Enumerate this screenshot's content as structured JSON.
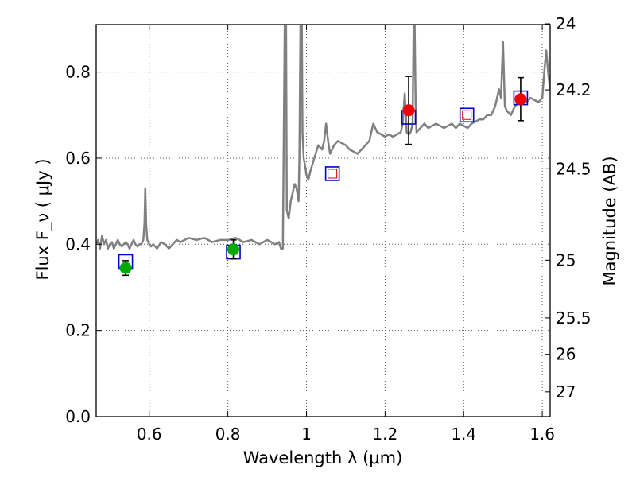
{
  "chart_data": {
    "type": "scatter",
    "xlabel": "Wavelength  λ (μm)",
    "ylabel": "Flux  F_ν  ( μJy )",
    "ylabel_right": "Magnitude (AB)",
    "xlim": [
      0.465,
      1.62
    ],
    "ylim": [
      0.0,
      0.91
    ],
    "grid": true,
    "x_ticks": [
      {
        "value": 0.6,
        "label": "0.6"
      },
      {
        "value": 0.8,
        "label": "0.8"
      },
      {
        "value": 1.0,
        "label": "1"
      },
      {
        "value": 1.2,
        "label": "1.2"
      },
      {
        "value": 1.4,
        "label": "1.4"
      },
      {
        "value": 1.6,
        "label": "1.6"
      }
    ],
    "y_ticks": [
      {
        "value": 0.0,
        "label": "0.0"
      },
      {
        "value": 0.2,
        "label": "0.2"
      },
      {
        "value": 0.4,
        "label": "0.4"
      },
      {
        "value": 0.6,
        "label": "0.6"
      },
      {
        "value": 0.8,
        "label": "0.8"
      }
    ],
    "right_ticks": [
      {
        "mag": 24,
        "label": "24"
      },
      {
        "mag": 24.2,
        "label": "24.2"
      },
      {
        "mag": 24.5,
        "label": "24.5"
      },
      {
        "mag": 25,
        "label": "25"
      },
      {
        "mag": 25.5,
        "label": "25.5"
      },
      {
        "mag": 26,
        "label": "26"
      },
      {
        "mag": 27,
        "label": "27"
      }
    ],
    "colors": {
      "spectrum": "#808080",
      "model_box": "#0000cc",
      "model_box_inner": "#dd0000",
      "green_point": "#00aa00",
      "red_point": "#ee0000",
      "errorbar": "#000000",
      "grid": "#555555"
    },
    "spectrum": {
      "name": "model spectrum",
      "x": [
        0.465,
        0.47,
        0.475,
        0.48,
        0.485,
        0.49,
        0.495,
        0.5,
        0.505,
        0.51,
        0.515,
        0.52,
        0.525,
        0.53,
        0.535,
        0.54,
        0.545,
        0.55,
        0.555,
        0.56,
        0.565,
        0.57,
        0.575,
        0.58,
        0.585,
        0.588,
        0.59,
        0.592,
        0.595,
        0.6,
        0.605,
        0.61,
        0.62,
        0.63,
        0.64,
        0.65,
        0.66,
        0.67,
        0.68,
        0.69,
        0.7,
        0.72,
        0.74,
        0.76,
        0.78,
        0.8,
        0.82,
        0.84,
        0.86,
        0.88,
        0.9,
        0.92,
        0.93,
        0.935,
        0.94,
        0.945,
        0.948,
        0.95,
        0.952,
        0.955,
        0.96,
        0.965,
        0.97,
        0.975,
        0.98,
        0.982,
        0.985,
        0.988,
        0.99,
        0.993,
        0.997,
        1.0,
        1.005,
        1.01,
        1.02,
        1.03,
        1.04,
        1.045,
        1.05,
        1.055,
        1.06,
        1.07,
        1.08,
        1.09,
        1.1,
        1.11,
        1.12,
        1.13,
        1.14,
        1.15,
        1.16,
        1.17,
        1.18,
        1.19,
        1.2,
        1.21,
        1.22,
        1.23,
        1.24,
        1.245,
        1.25,
        1.255,
        1.26,
        1.265,
        1.27,
        1.273,
        1.275,
        1.278,
        1.28,
        1.285,
        1.29,
        1.3,
        1.31,
        1.32,
        1.33,
        1.34,
        1.35,
        1.36,
        1.37,
        1.38,
        1.39,
        1.4,
        1.41,
        1.42,
        1.43,
        1.44,
        1.45,
        1.46,
        1.47,
        1.48,
        1.49,
        1.495,
        1.5,
        1.505,
        1.51,
        1.52,
        1.53,
        1.54,
        1.55,
        1.56,
        1.57,
        1.58,
        1.59,
        1.6,
        1.605,
        1.61,
        1.615,
        1.62
      ],
      "y": [
        0.4,
        0.41,
        0.39,
        0.42,
        0.4,
        0.41,
        0.39,
        0.4,
        0.405,
        0.39,
        0.4,
        0.41,
        0.4,
        0.395,
        0.4,
        0.405,
        0.4,
        0.39,
        0.4,
        0.41,
        0.4,
        0.395,
        0.4,
        0.4,
        0.41,
        0.45,
        0.53,
        0.45,
        0.41,
        0.4,
        0.395,
        0.4,
        0.39,
        0.405,
        0.4,
        0.39,
        0.4,
        0.41,
        0.405,
        0.41,
        0.415,
        0.41,
        0.415,
        0.405,
        0.41,
        0.41,
        0.415,
        0.405,
        0.41,
        0.4,
        0.41,
        0.4,
        0.405,
        0.39,
        0.39,
        0.94,
        0.94,
        0.48,
        0.47,
        0.46,
        0.5,
        0.52,
        0.54,
        0.53,
        0.5,
        0.6,
        0.94,
        0.94,
        0.66,
        0.6,
        0.58,
        0.56,
        0.55,
        0.57,
        0.6,
        0.63,
        0.62,
        0.64,
        0.68,
        0.64,
        0.61,
        0.63,
        0.64,
        0.635,
        0.63,
        0.62,
        0.615,
        0.61,
        0.62,
        0.63,
        0.64,
        0.68,
        0.66,
        0.655,
        0.65,
        0.655,
        0.65,
        0.655,
        0.66,
        0.68,
        0.75,
        0.66,
        0.655,
        0.66,
        0.68,
        0.94,
        0.94,
        0.71,
        0.66,
        0.665,
        0.67,
        0.68,
        0.67,
        0.675,
        0.68,
        0.675,
        0.67,
        0.675,
        0.68,
        0.67,
        0.68,
        0.675,
        0.67,
        0.68,
        0.685,
        0.69,
        0.69,
        0.7,
        0.7,
        0.72,
        0.76,
        0.74,
        0.87,
        0.72,
        0.71,
        0.7,
        0.72,
        0.73,
        0.74,
        0.73,
        0.74,
        0.735,
        0.73,
        0.74,
        0.8,
        0.85,
        0.8,
        0.76
      ]
    },
    "model_boxes": [
      {
        "x": 0.54,
        "y": 0.36,
        "hollow_red": false
      },
      {
        "x": 0.814,
        "y": 0.382,
        "hollow_red": false
      },
      {
        "x": 1.066,
        "y": 0.564,
        "hollow_red": true
      },
      {
        "x": 1.26,
        "y": 0.695,
        "hollow_red": false
      },
      {
        "x": 1.408,
        "y": 0.7,
        "hollow_red": true
      },
      {
        "x": 1.545,
        "y": 0.74,
        "hollow_red": false
      }
    ],
    "observed_points": [
      {
        "x": 0.54,
        "y": 0.345,
        "err": 0.017,
        "color": "green"
      },
      {
        "x": 0.814,
        "y": 0.388,
        "err": 0.022,
        "color": "green"
      },
      {
        "x": 1.26,
        "y": 0.711,
        "err": 0.079,
        "color": "red"
      },
      {
        "x": 1.545,
        "y": 0.737,
        "err": 0.05,
        "color": "red"
      }
    ]
  }
}
